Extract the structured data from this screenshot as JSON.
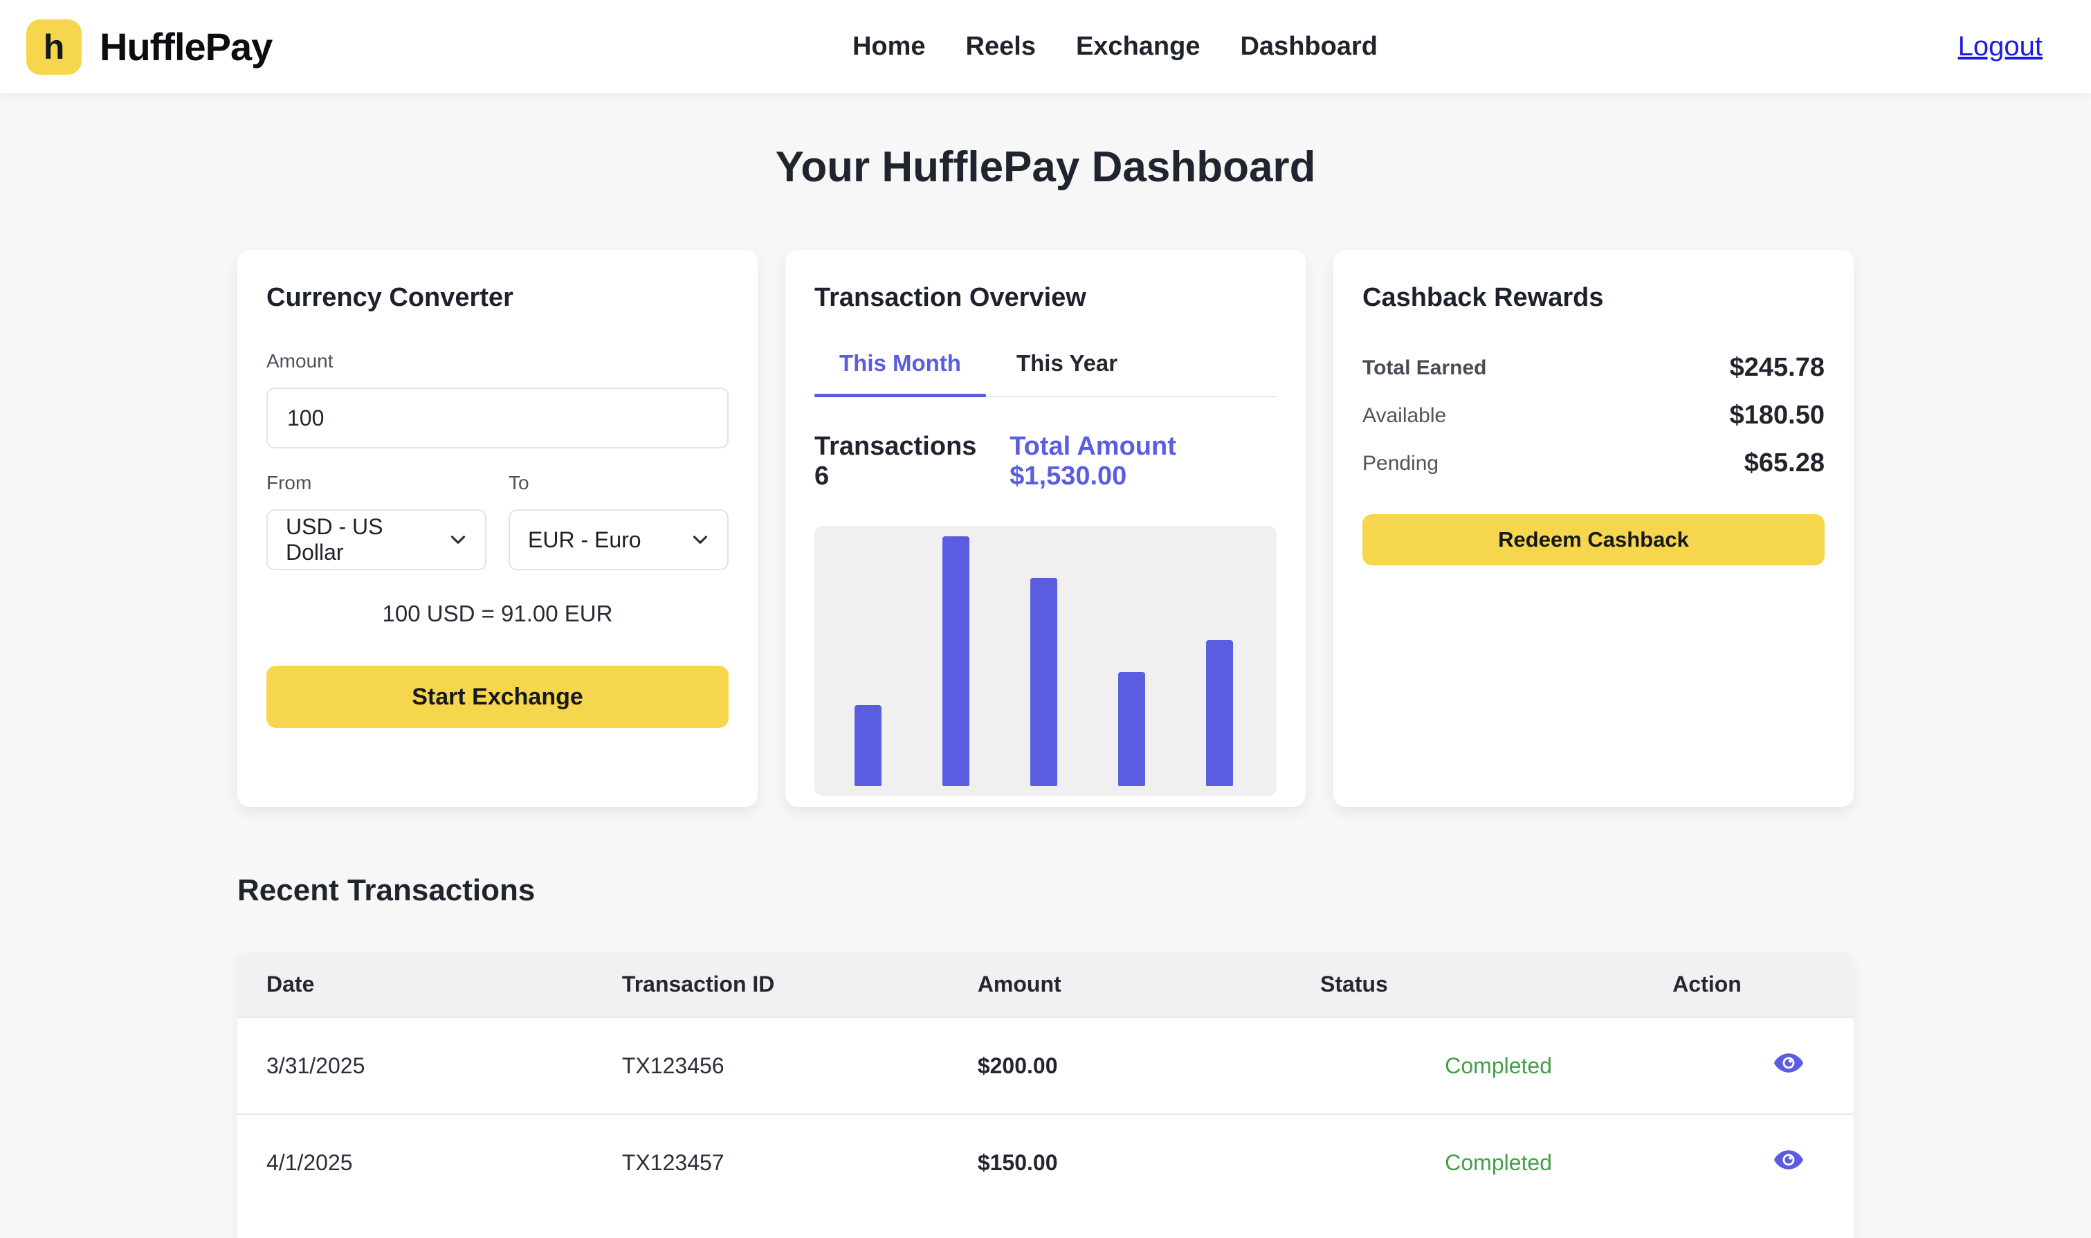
{
  "header": {
    "logo_letter": "h",
    "brand": "HufflePay",
    "nav": [
      "Home",
      "Reels",
      "Exchange",
      "Dashboard"
    ],
    "logout_label": "Logout"
  },
  "page_title": "Your HufflePay Dashboard",
  "converter": {
    "title": "Currency Converter",
    "amount_label": "Amount",
    "amount_value": "100",
    "from_label": "From",
    "from_value": "USD - US Dollar",
    "to_label": "To",
    "to_value": "EUR - Euro",
    "conversion_text": "100 USD = 91.00 EUR",
    "button_label": "Start Exchange"
  },
  "overview": {
    "title": "Transaction Overview",
    "tabs": [
      {
        "label": "This Month",
        "active": true
      },
      {
        "label": "This Year",
        "active": false
      }
    ],
    "transactions_label": "Transactions 6",
    "total_label": "Total Amount $1,530.00"
  },
  "chart_data": {
    "type": "bar",
    "title": "Transaction Overview - This Month",
    "categories": [
      "",
      "",
      "",
      "",
      ""
    ],
    "values_percent_of_plot_height": [
      31,
      96,
      80,
      44,
      56
    ],
    "axis_labels_visible": false,
    "gridlines": false,
    "bar_color": "#5a5de0",
    "plot_background": "#f0f0f1",
    "legend": "none"
  },
  "cashback": {
    "title": "Cashback Rewards",
    "rows": [
      {
        "label": "Total Earned",
        "value": "$245.78"
      },
      {
        "label": "Available",
        "value": "$180.50"
      },
      {
        "label": "Pending",
        "value": "$65.28"
      }
    ],
    "button_label": "Redeem Cashback"
  },
  "transactions": {
    "title": "Recent Transactions",
    "columns": [
      "Date",
      "Transaction ID",
      "Amount",
      "Status",
      "Action"
    ],
    "rows": [
      {
        "date": "3/31/2025",
        "id": "TX123456",
        "amount": "$200.00",
        "status": "Completed"
      },
      {
        "date": "4/1/2025",
        "id": "TX123457",
        "amount": "$150.00",
        "status": "Completed"
      }
    ]
  },
  "colors": {
    "accent_yellow": "#f6d64c",
    "accent_indigo": "#5a5de0",
    "status_green": "#43a047",
    "link_blue": "#1d1ce2",
    "page_background": "#f7f7f8",
    "chart_background": "#f0f0f1",
    "table_header_background": "#f1f1f3"
  }
}
